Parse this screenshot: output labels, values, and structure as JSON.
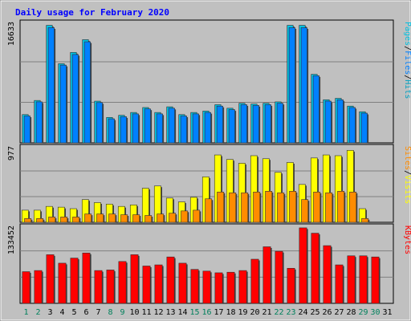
{
  "chart_data": {
    "type": "bar",
    "title": "Daily usage for February 2020",
    "categories": [
      "1",
      "2",
      "3",
      "4",
      "5",
      "6",
      "7",
      "8",
      "9",
      "10",
      "11",
      "12",
      "13",
      "14",
      "15",
      "16",
      "17",
      "18",
      "19",
      "20",
      "21",
      "22",
      "23",
      "24",
      "25",
      "26",
      "27",
      "28",
      "29",
      "30",
      "31"
    ],
    "weekend_days": [
      "1",
      "2",
      "8",
      "9",
      "15",
      "16",
      "22",
      "23",
      "29",
      "30"
    ],
    "panels": [
      {
        "ymax_label": "16633",
        "ymax": 16633,
        "series": [
          {
            "name": "Hits",
            "color": "#00C0E0",
            "values": [
              4000,
              6000,
              16633,
              11200,
              12800,
              14600,
              5900,
              3600,
              3900,
              4300,
              5000,
              4300,
              5100,
              4000,
              4300,
              4500,
              5400,
              4900,
              5600,
              5500,
              5600,
              5800,
              16633,
              16633,
              9700,
              6100,
              6300,
              5200,
              4400,
              null,
              null
            ]
          },
          {
            "name": "Files",
            "color": "#0080FF",
            "values": [
              3800,
              5800,
              16300,
              11000,
              12500,
              14300,
              5700,
              3400,
              3700,
              4100,
              4800,
              4100,
              4900,
              3800,
              4100,
              4300,
              5200,
              4700,
              5400,
              5300,
              5400,
              5600,
              16300,
              16300,
              9500,
              5900,
              6100,
              5000,
              4200,
              null,
              null
            ]
          },
          {
            "name": "Pages",
            "color": "#00A0C0",
            "values": [
              null,
              null,
              null,
              null,
              null,
              null,
              null,
              null,
              null,
              null,
              null,
              null,
              null,
              null,
              null,
              null,
              null,
              null,
              null,
              null,
              null,
              null,
              null,
              null,
              null,
              null,
              null,
              null,
              null,
              null,
              null
            ]
          }
        ],
        "legend_right": [
          "Pages",
          "/",
          "Files",
          "/",
          "Hits"
        ],
        "legend_colors": [
          "#00C0E0",
          "#000000",
          "#0080FF",
          "#000000",
          "#00A0C0"
        ]
      },
      {
        "ymax_label": "977",
        "ymax": 977,
        "series": [
          {
            "name": "Visits",
            "color": "#FFFF00",
            "values": [
              160,
              160,
              210,
              200,
              180,
              300,
              260,
              240,
              210,
              230,
              450,
              480,
              320,
              270,
              330,
              600,
              890,
              830,
              780,
              880,
              840,
              660,
              790,
              500,
              850,
              890,
              880,
              950,
              180,
              null,
              null
            ]
          },
          {
            "name": "Sites",
            "color": "#FF8C00",
            "values": [
              50,
              50,
              70,
              70,
              70,
              110,
              110,
              110,
              100,
              100,
              90,
              110,
              120,
              150,
              160,
              310,
              400,
              390,
              390,
              400,
              410,
              390,
              410,
              300,
              400,
              390,
              410,
              400,
              50,
              null,
              null
            ]
          }
        ],
        "legend_right": [
          "Sites",
          "/",
          "Visits"
        ],
        "legend_colors": [
          "#FF8C00",
          "#000000",
          "#FFFF00"
        ]
      },
      {
        "ymax_label": "133452",
        "ymax": 133452,
        "series": [
          {
            "name": "KBytes",
            "color": "#FF0000",
            "values": [
              56000,
              58000,
              86000,
              71000,
              80000,
              89000,
              58000,
              59000,
              74000,
              86000,
              66000,
              68000,
              82000,
              71000,
              60000,
              57000,
              54000,
              55000,
              58000,
              78000,
              100000,
              92000,
              62000,
              133452,
              124000,
              102000,
              68000,
              84000,
              84000,
              82000,
              null
            ]
          }
        ],
        "legend_right": [
          "KBytes"
        ],
        "legend_colors": [
          "#FF0000"
        ]
      }
    ]
  },
  "colors": {
    "background": "#C0C0C0",
    "frame": "#FFFFFF",
    "title": "#0000FF",
    "axis_weekday": "#000000",
    "axis_weekend": "#00805C"
  }
}
